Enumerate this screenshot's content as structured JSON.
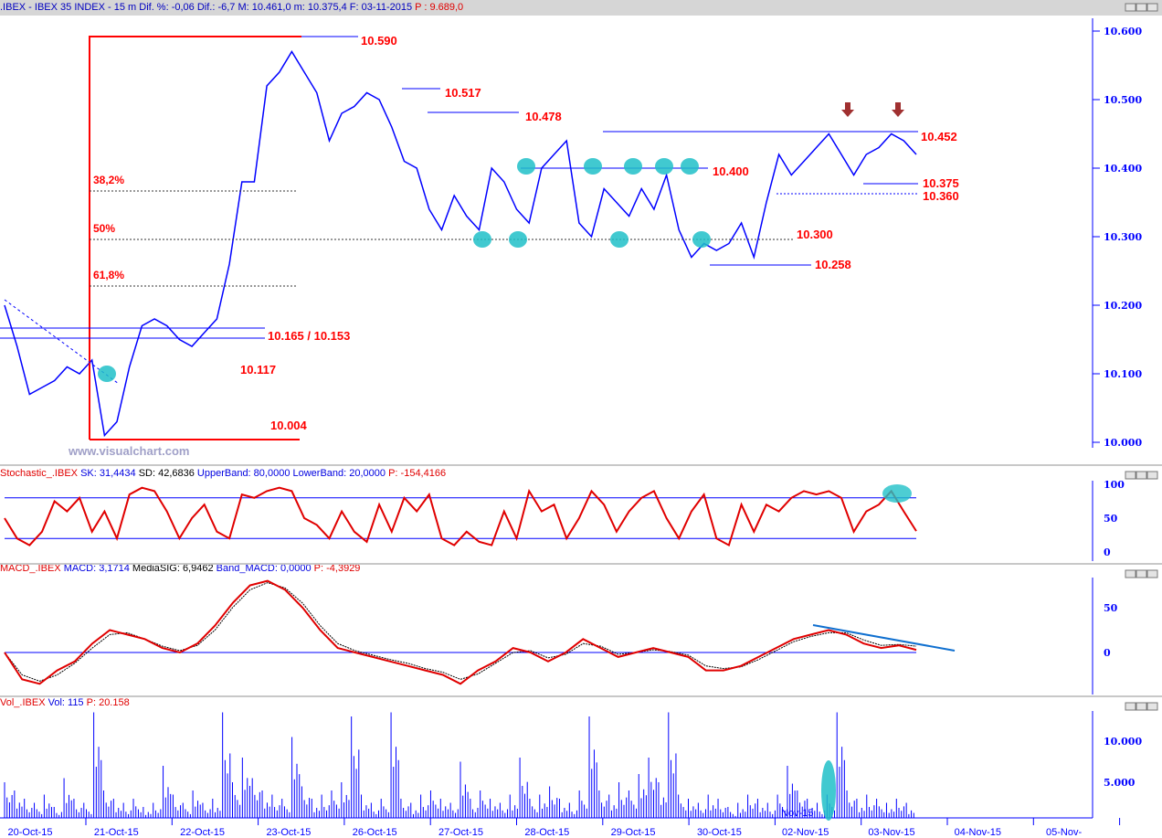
{
  "header": {
    "symbol": ".IBEX - IBEX 35 INDEX - ",
    "interval": "15 m",
    "dif_pct": "Dif. %: -0,06",
    "dif": "Dif.: -6,7",
    "max": "M: 10.461,0",
    "min": "m: 10.375,4",
    "date": "F: 03-11-2015",
    "p": "P : 9.689,0"
  },
  "watermark": "www.visualchart.com",
  "stoch_header": {
    "name": "Stochastic_.IBEX",
    "sk": "SK: 31,4434",
    "sd": "SD: 42,6836",
    "upper": "UpperBand: 80,0000",
    "lower": "LowerBand: 20,0000",
    "p": "P: -154,4166"
  },
  "macd_header": {
    "name": "MACD_.IBEX",
    "macd": "MACD: 3,1714",
    "sig": "MediaSIG: 6,9462",
    "band": "Band_MACD: 0,0000",
    "p": "P: -4,3929"
  },
  "vol_header": {
    "name": "Vol_.IBEX",
    "vol": "Vol: 115",
    "p": "P: 20.158"
  },
  "annotations": {
    "a10590": "10.590",
    "a10517": "10.517",
    "a10478": "10.478",
    "a10452": "10.452",
    "a10400": "10.400",
    "a10375": "10.375",
    "a10360": "10.360",
    "a10300": "10.300",
    "a10258": "10.258",
    "a10165": "10.165 / 10.153",
    "a10117": "10.117",
    "a10004": "10.004",
    "f382": "38,2%",
    "f50": "50%",
    "f618": "61,8%",
    "nov15": "Nov-15"
  },
  "colors": {
    "price": "#0000ff",
    "annot": "#ff0000",
    "highlight": "#20c0c8",
    "axis": "#0000ff"
  },
  "chart_data": [
    {
      "type": "line",
      "panel": "price",
      "ylim": [
        9.98,
        10.62
      ],
      "yticks": [
        "10.000",
        "10.100",
        "10.200",
        "10.300",
        "10.400",
        "10.500",
        "10.600"
      ],
      "xticks": [
        "20-Oct-15",
        "21-Oct-15",
        "22-Oct-15",
        "23-Oct-15",
        "26-Oct-15",
        "27-Oct-15",
        "28-Oct-15",
        "29-Oct-15",
        "30-Oct-15",
        "02-Nov-15",
        "03-Nov-15",
        "04-Nov-15",
        "05-Nov-"
      ],
      "close": [
        10.2,
        10.14,
        10.07,
        10.08,
        10.09,
        10.11,
        10.1,
        10.12,
        10.01,
        10.03,
        10.11,
        10.17,
        10.18,
        10.17,
        10.15,
        10.14,
        10.16,
        10.18,
        10.26,
        10.38,
        10.38,
        10.52,
        10.54,
        10.57,
        10.54,
        10.51,
        10.44,
        10.48,
        10.49,
        10.51,
        10.5,
        10.46,
        10.41,
        10.4,
        10.34,
        10.31,
        10.36,
        10.33,
        10.31,
        10.4,
        10.38,
        10.34,
        10.32,
        10.4,
        10.42,
        10.44,
        10.32,
        10.3,
        10.37,
        10.35,
        10.33,
        10.37,
        10.34,
        10.39,
        10.31,
        10.27,
        10.29,
        10.28,
        10.29,
        10.32,
        10.27,
        10.35,
        10.42,
        10.39,
        10.41,
        10.43,
        10.45,
        10.42,
        10.39,
        10.42,
        10.43,
        10.45,
        10.44,
        10.42
      ]
    },
    {
      "type": "line",
      "panel": "stochastic",
      "ylim": [
        -5,
        105
      ],
      "yticks": [
        "0",
        "50",
        "100"
      ],
      "bands": [
        80,
        20
      ],
      "sk": [
        50,
        20,
        10,
        30,
        75,
        60,
        80,
        30,
        60,
        20,
        85,
        95,
        90,
        60,
        20,
        50,
        70,
        30,
        20,
        85,
        80,
        90,
        95,
        90,
        50,
        40,
        20,
        60,
        30,
        15,
        70,
        30,
        80,
        60,
        85,
        20,
        10,
        30,
        15,
        10,
        60,
        20,
        90,
        60,
        70,
        20,
        50,
        90,
        70,
        30,
        60,
        80,
        90,
        50,
        20,
        60,
        85,
        20,
        10,
        70,
        30,
        70,
        60,
        80,
        90,
        85,
        90,
        80,
        30,
        60,
        70,
        90,
        60,
        31
      ]
    },
    {
      "type": "line",
      "panel": "macd",
      "ylim": [
        -45,
        95
      ],
      "yticks": [
        "-50",
        "0",
        "50"
      ],
      "band": 0,
      "macd": [
        0,
        -30,
        -35,
        -20,
        -10,
        10,
        25,
        20,
        15,
        5,
        0,
        10,
        30,
        55,
        75,
        80,
        70,
        50,
        25,
        5,
        0,
        -5,
        -10,
        -15,
        -20,
        -25,
        -35,
        -20,
        -10,
        5,
        0,
        -10,
        0,
        15,
        5,
        -5,
        0,
        5,
        0,
        -5,
        -20,
        -20,
        -15,
        -5,
        5,
        15,
        20,
        25,
        20,
        10,
        5,
        8,
        3
      ],
      "signal": [
        0,
        -25,
        -32,
        -25,
        -12,
        5,
        20,
        22,
        15,
        7,
        2,
        8,
        25,
        50,
        70,
        78,
        72,
        55,
        30,
        10,
        2,
        -3,
        -8,
        -12,
        -18,
        -22,
        -30,
        -24,
        -12,
        0,
        2,
        -6,
        -2,
        10,
        7,
        -2,
        0,
        3,
        1,
        -3,
        -15,
        -18,
        -16,
        -8,
        2,
        12,
        18,
        22,
        22,
        14,
        8,
        9,
        7
      ]
    },
    {
      "type": "bar",
      "panel": "volume",
      "ylim": [
        0,
        14000
      ],
      "yticks": [
        "5.000",
        "10.000"
      ],
      "volume": [
        5000,
        4000,
        3000,
        2500,
        3500,
        2000,
        5500,
        3000,
        2500,
        13500,
        4000,
        3000,
        2500,
        3000,
        2000,
        2500,
        7000,
        3500,
        2500,
        4000,
        2500,
        3000,
        13500,
        5000,
        8000,
        5500,
        4000,
        3500,
        3000,
        10500,
        4500,
        3000,
        3500,
        4000,
        5000,
        13000,
        3500,
        2500,
        3000,
        13500,
        3000,
        2500,
        3500,
        4000,
        3000,
        2500,
        7500,
        3000,
        4000,
        3000,
        2500,
        3500,
        8000,
        3000,
        3500,
        4500,
        3000,
        2500,
        4000,
        13000,
        4000,
        3500,
        5000,
        4000,
        6000,
        8000,
        5000,
        13500,
        3500,
        3000,
        2500,
        3500,
        3000,
        2000,
        2500,
        3500,
        3000,
        2500,
        3500,
        7000,
        4000,
        3000,
        2500,
        3500,
        13500,
        4000,
        3000,
        3500,
        3000,
        2500,
        3000,
        2500
      ]
    }
  ]
}
